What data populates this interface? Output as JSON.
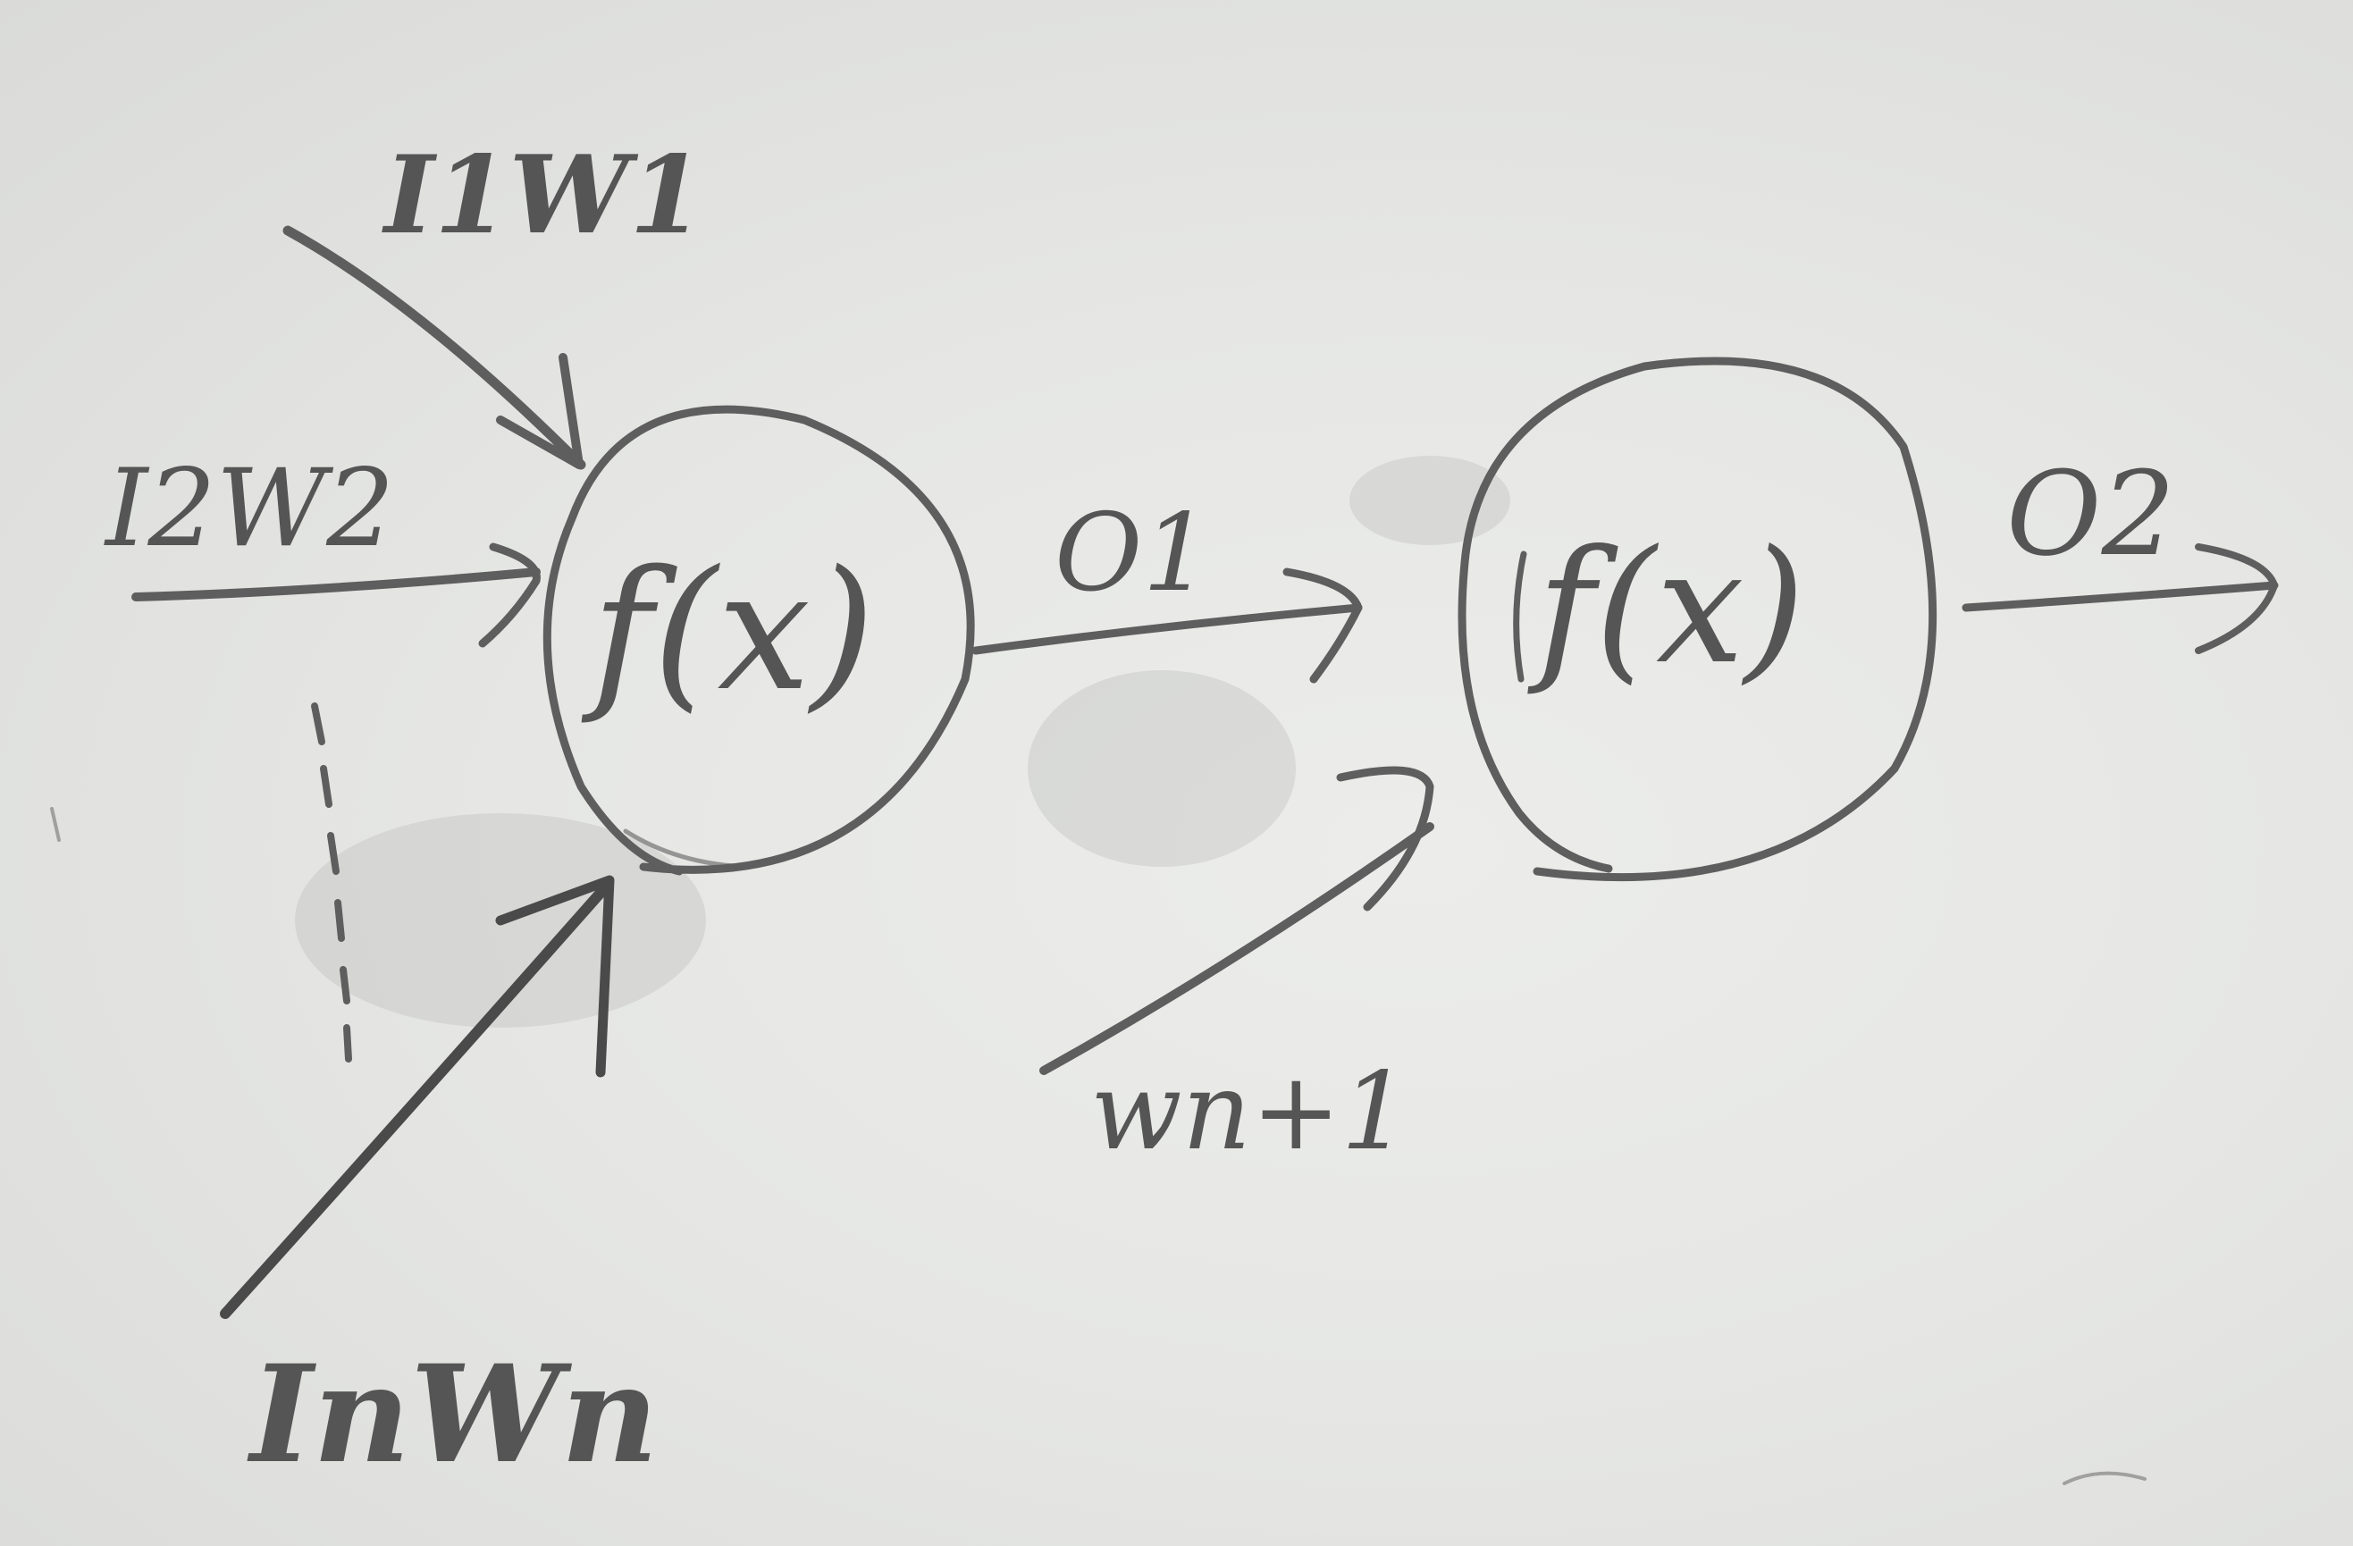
{
  "diagram": {
    "neurons": [
      {
        "id": "neuron-1",
        "label": "f(x)"
      },
      {
        "id": "neuron-2",
        "label": "f(x)"
      }
    ],
    "inputs": [
      {
        "id": "input-1",
        "label": "I1W1"
      },
      {
        "id": "input-2",
        "label": "I2W2"
      },
      {
        "id": "input-n",
        "label": "InWn"
      }
    ],
    "edges": [
      {
        "from": "input-1",
        "to": "neuron-1"
      },
      {
        "from": "input-2",
        "to": "neuron-1"
      },
      {
        "from": "input-n",
        "to": "neuron-1"
      },
      {
        "from": "neuron-1",
        "to": "neuron-2",
        "label": "O1"
      },
      {
        "from": "bias",
        "to": "neuron-2",
        "label": "wn+1"
      },
      {
        "from": "neuron-2",
        "to": "output",
        "label": "O2"
      }
    ],
    "ellipsis_between_inputs": true
  },
  "labels": {
    "neuron_1": "f(x)",
    "neuron_2": "f(x)",
    "input_1": "I1W1",
    "input_2": "I2W2",
    "input_n": "InWn",
    "output_1": "O1",
    "output_2": "O2",
    "bias_weight": "wn+1"
  }
}
